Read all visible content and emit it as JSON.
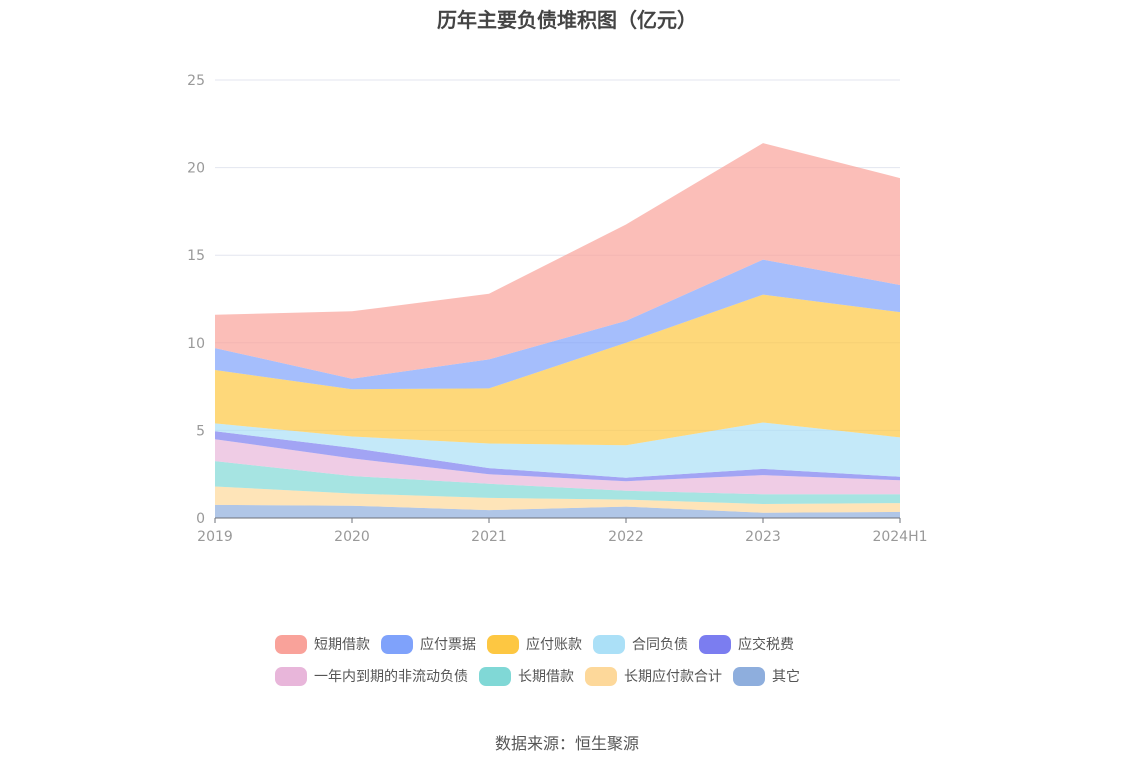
{
  "chart_data": {
    "type": "area",
    "stacked": true,
    "title": "历年主要负债堆积图（亿元）",
    "xlabel": "",
    "ylabel": "",
    "categories": [
      "2019",
      "2020",
      "2021",
      "2022",
      "2023",
      "2024H1"
    ],
    "ylim": [
      0,
      25
    ],
    "yticks": [
      0,
      5,
      10,
      15,
      20,
      25
    ],
    "grid": true,
    "legend_position": "bottom",
    "series": [
      {
        "name": "其它",
        "color": "#8eaedd",
        "values": [
          0.75,
          0.7,
          0.45,
          0.65,
          0.3,
          0.35
        ]
      },
      {
        "name": "长期应付款合计",
        "color": "#fdd89a",
        "values": [
          1.05,
          0.7,
          0.7,
          0.4,
          0.5,
          0.5
        ]
      },
      {
        "name": "长期借款",
        "color": "#80d8d6",
        "values": [
          1.45,
          1.0,
          0.8,
          0.5,
          0.55,
          0.5
        ]
      },
      {
        "name": "一年内到期的非流动负债",
        "color": "#e8b6da",
        "values": [
          1.25,
          1.0,
          0.55,
          0.55,
          1.1,
          0.8
        ]
      },
      {
        "name": "应交税费",
        "color": "#7b7df0",
        "values": [
          0.45,
          0.6,
          0.35,
          0.2,
          0.35,
          0.2
        ]
      },
      {
        "name": "合同负债",
        "color": "#abe0f7",
        "values": [
          0.45,
          0.65,
          1.4,
          1.85,
          2.65,
          2.25
        ]
      },
      {
        "name": "应付账款",
        "color": "#fdc742",
        "values": [
          3.05,
          2.7,
          3.15,
          5.85,
          7.3,
          7.15
        ]
      },
      {
        "name": "应付票据",
        "color": "#7fa2fb",
        "values": [
          1.25,
          0.6,
          1.65,
          1.25,
          2.0,
          1.55
        ]
      },
      {
        "name": "短期借款",
        "color": "#f9a29a",
        "values": [
          1.9,
          3.85,
          3.75,
          5.5,
          6.65,
          6.1
        ]
      }
    ],
    "legend_rows": [
      [
        {
          "name": "短期借款",
          "color": "#f9a29a"
        },
        {
          "name": "应付票据",
          "color": "#7fa2fb"
        },
        {
          "name": "应付账款",
          "color": "#fdc742"
        },
        {
          "name": "合同负债",
          "color": "#abe0f7"
        },
        {
          "name": "应交税费",
          "color": "#7b7df0"
        }
      ],
      [
        {
          "name": "一年内到期的非流动负债",
          "color": "#e8b6da"
        },
        {
          "name": "长期借款",
          "color": "#80d8d6"
        },
        {
          "name": "长期应付款合计",
          "color": "#fdd89a"
        },
        {
          "name": "其它",
          "color": "#8eaedd"
        }
      ]
    ]
  },
  "source_text": "数据来源：恒生聚源"
}
